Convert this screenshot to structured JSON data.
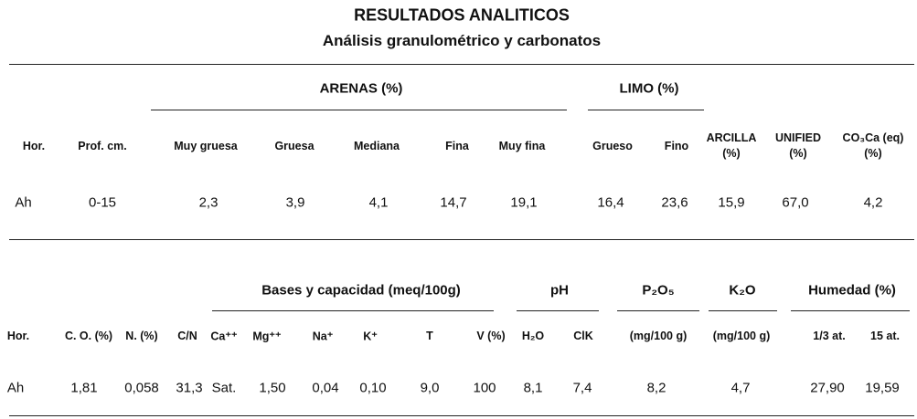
{
  "header": {
    "title": "RESULTADOS ANALITICOS",
    "subtitle": "Análisis granulométrico y carbonatos"
  },
  "table1": {
    "groups": [
      "ARENAS (%)",
      "LIMO (%)"
    ],
    "columns": [
      "Hor.",
      "Prof. cm.",
      "Muy gruesa",
      "Gruesa",
      "Mediana",
      "Fina",
      "Muy fina",
      "Grueso",
      "Fino",
      "ARCILLA (%)",
      "UNIFIED (%)",
      "CO₃Ca (eq) (%)"
    ],
    "rows": [
      [
        "Ah",
        "0-15",
        "2,3",
        "3,9",
        "4,1",
        "14,7",
        "19,1",
        "16,4",
        "23,6",
        "15,9",
        "67,0",
        "4,2"
      ]
    ]
  },
  "table2": {
    "groups": [
      "Bases y capacidad (meq/100g)",
      "pH",
      "P₂O₅",
      "K₂O",
      "Humedad (%)"
    ],
    "columns": [
      "Hor.",
      "C. O. (%)",
      "N. (%)",
      "C/N",
      "Ca⁺⁺",
      "Mg⁺⁺",
      "Na⁺",
      "K⁺",
      "T",
      "V (%)",
      "H₂O",
      "ClK",
      "(mg/100 g)",
      "(mg/100 g)",
      "1/3 at.",
      "15 at."
    ],
    "rows": [
      [
        "Ah",
        "1,81",
        "0,058",
        "31,3",
        "Sat.",
        "1,50",
        "0,04",
        "0,10",
        "9,0",
        "100",
        "8,1",
        "7,4",
        "8,2",
        "4,7",
        "27,90",
        "19,59"
      ]
    ]
  }
}
